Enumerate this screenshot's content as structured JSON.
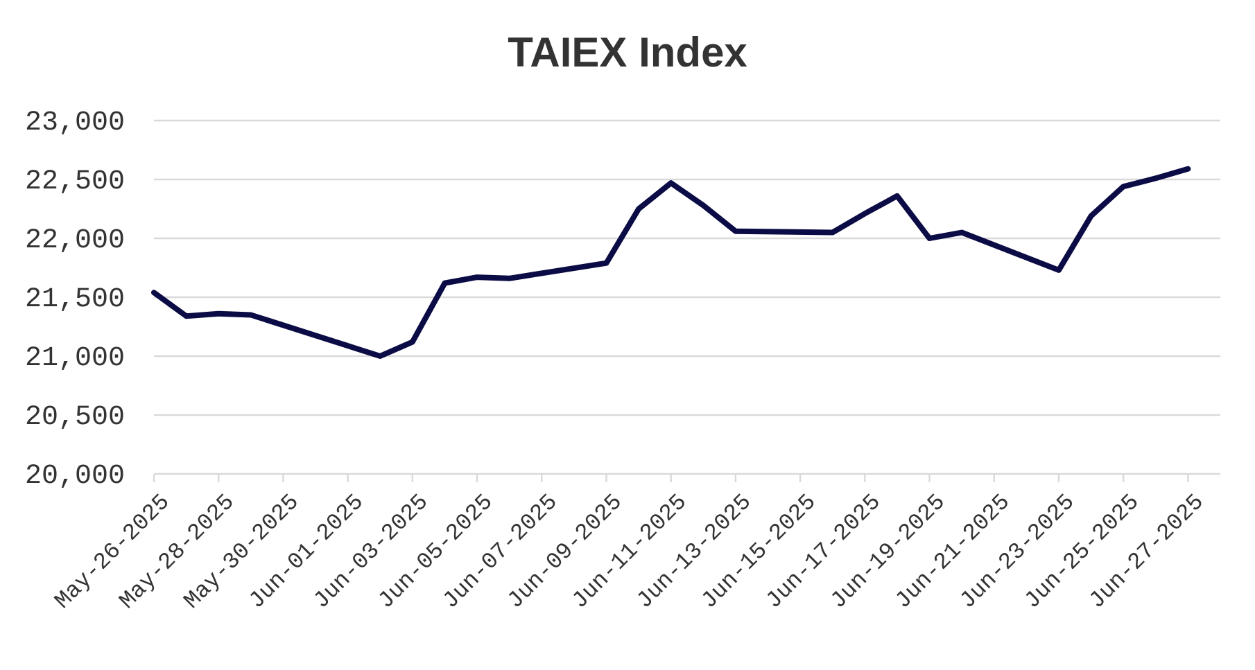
{
  "chart_data": {
    "type": "line",
    "title": "TAIEX Index",
    "xlabel": "",
    "ylabel": "",
    "ylim": [
      20000,
      23000
    ],
    "yticks": [
      20000,
      20500,
      21000,
      21500,
      22000,
      22500,
      23000
    ],
    "ytick_labels": [
      "20,000",
      "20,500",
      "21,000",
      "21,500",
      "22,000",
      "22,500",
      "23,000"
    ],
    "xtick_labels": [
      "May-26-2025",
      "May-28-2025",
      "May-30-2025",
      "Jun-01-2025",
      "Jun-03-2025",
      "Jun-05-2025",
      "Jun-07-2025",
      "Jun-09-2025",
      "Jun-11-2025",
      "Jun-13-2025",
      "Jun-15-2025",
      "Jun-17-2025",
      "Jun-19-2025",
      "Jun-21-2025",
      "Jun-23-2025",
      "Jun-25-2025",
      "Jun-27-2025"
    ],
    "xrange": [
      "2025-05-26",
      "2025-06-28"
    ],
    "grid": true,
    "legend": "none",
    "series": [
      {
        "color": "#0b0b45",
        "x": [
          "2025-05-26",
          "2025-05-27",
          "2025-05-28",
          "2025-05-29",
          "2025-06-02",
          "2025-06-03",
          "2025-06-04",
          "2025-06-05",
          "2025-06-06",
          "2025-06-09",
          "2025-06-10",
          "2025-06-11",
          "2025-06-12",
          "2025-06-13",
          "2025-06-16",
          "2025-06-17",
          "2025-06-18",
          "2025-06-19",
          "2025-06-20",
          "2025-06-23",
          "2025-06-24",
          "2025-06-25",
          "2025-06-26",
          "2025-06-27"
        ],
        "values": [
          21540,
          21340,
          21360,
          21350,
          21000,
          21120,
          21620,
          21670,
          21660,
          21790,
          22250,
          22470,
          22280,
          22060,
          22050,
          22210,
          22360,
          22000,
          22050,
          21730,
          22190,
          22440,
          22510,
          22590
        ]
      }
    ]
  }
}
